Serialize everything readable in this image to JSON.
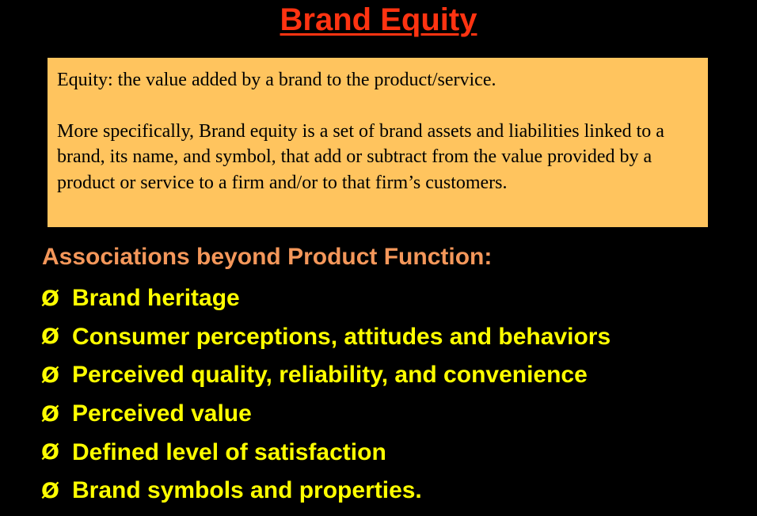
{
  "title": "Brand Equity",
  "definition": {
    "line1": "Equity:  the value added by a brand to the product/service.",
    "line2": "More specifically, Brand equity is a set of brand assets and liabilities linked to a brand, its name, and symbol, that add or subtract from the value provided by a product or service to a firm and/or to that firm’s customers."
  },
  "associations": {
    "heading": "Associations beyond Product Function:",
    "bullet_glyph": "Ø",
    "items": [
      "Brand heritage",
      "Consumer perceptions, attitudes and behaviors",
      "Perceived quality, reliability, and convenience",
      "Perceived value",
      "Defined level of satisfaction",
      "Brand symbols and properties."
    ]
  },
  "colors": {
    "background": "#000000",
    "title": "#ff3311",
    "box_fill": "#ffc45e",
    "heading": "#f4975a",
    "bullets": "#ffff00"
  }
}
